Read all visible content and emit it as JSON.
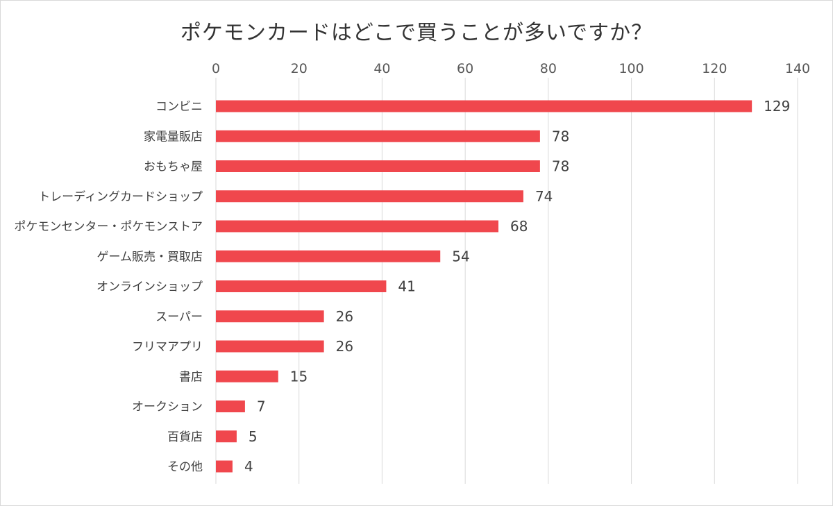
{
  "chart_data": {
    "type": "bar",
    "orientation": "horizontal",
    "title": "ポケモンカードはどこで買うことが多いですか？",
    "xlabel": "",
    "ylabel": "",
    "categories": [
      "コンビニ",
      "家電量販店",
      "おもちゃ屋",
      "トレーディングカードショップ",
      "ポケモンセンター・ポケモンストア",
      "ゲーム販売・買取店",
      "オンラインショップ",
      "スーパー",
      "フリマアプリ",
      "書店",
      "オークション",
      "百貨店",
      "その他"
    ],
    "values": [
      129,
      78,
      78,
      74,
      68,
      54,
      41,
      26,
      26,
      15,
      7,
      5,
      4
    ],
    "xlim": [
      0,
      140
    ],
    "ticks": [
      0,
      20,
      40,
      60,
      80,
      100,
      120,
      140
    ],
    "axis_position": "top",
    "grid": true,
    "legend": "none",
    "data_labels": true,
    "bar_color": "#f0474d",
    "grid_color": "#d9d9d9"
  }
}
